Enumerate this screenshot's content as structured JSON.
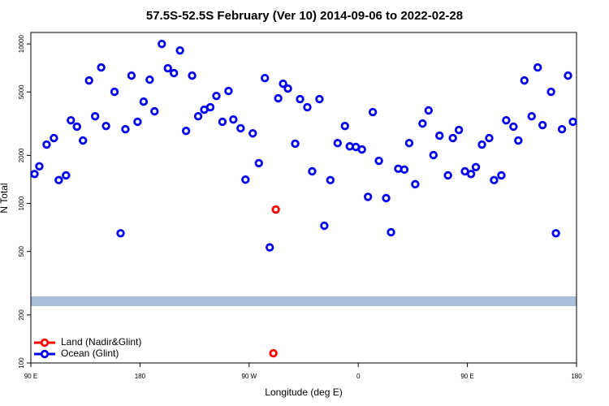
{
  "chart_data": {
    "type": "scatter",
    "title": "57.5S-52.5S February (Ver 10)   2014-09-06 to 2022-02-28",
    "xlabel": "Longitude (deg E)",
    "ylabel": "N Total",
    "ylog": true,
    "xlim": [
      90,
      540
    ],
    "ylim": [
      100,
      11800
    ],
    "xticks": [
      {
        "value": 90,
        "label": "90 E"
      },
      {
        "value": 180,
        "label": "180"
      },
      {
        "value": 270,
        "label": "90 W"
      },
      {
        "value": 360,
        "label": "0"
      },
      {
        "value": 450,
        "label": "90 E"
      },
      {
        "value": 540,
        "label": "180"
      }
    ],
    "yticks": [
      100,
      200,
      500,
      1000,
      2000,
      5000,
      10000
    ],
    "legend": "lower left",
    "series": [
      {
        "name": "Land (Nadir&Glint)",
        "color": "#ff0000",
        "x": [
          292,
          290
        ],
        "values": [
          916,
          115
        ]
      },
      {
        "name": "Ocean (Glint)",
        "color": "#0000ee",
        "x": [
          93,
          97,
          103,
          109,
          113,
          119,
          123,
          128,
          133,
          138,
          143,
          148,
          152,
          159,
          164,
          168,
          173,
          178,
          183,
          188,
          192,
          198,
          203,
          208,
          213,
          218,
          223,
          228,
          233,
          238,
          243,
          248,
          253,
          257,
          263,
          267,
          273,
          278,
          283,
          287,
          294,
          298,
          302,
          308,
          312,
          318,
          322,
          328,
          332,
          337,
          343,
          349,
          353,
          358,
          363,
          368,
          372,
          377,
          383,
          387,
          393,
          398,
          402,
          407,
          413,
          418,
          422,
          427,
          434,
          438,
          443,
          448,
          453,
          457,
          462,
          468,
          472,
          478,
          482,
          488,
          492,
          497,
          503,
          508,
          512,
          519,
          523,
          528,
          533,
          537
        ],
        "values": [
          1530,
          1710,
          2340,
          2570,
          1400,
          1500,
          3320,
          3030,
          2480,
          5900,
          3520,
          7120,
          3060,
          5010,
          650,
          2920,
          6330,
          3250,
          4350,
          5970,
          3780,
          10000,
          7040,
          6560,
          9100,
          2850,
          6330,
          3520,
          3870,
          4010,
          4720,
          3250,
          5070,
          3360,
          2960,
          1410,
          2750,
          1790,
          6110,
          530,
          4560,
          5630,
          5250,
          2370,
          4510,
          4010,
          1590,
          4510,
          725,
          1400,
          2390,
          3060,
          2280,
          2260,
          2180,
          1100,
          3740,
          1850,
          1080,
          660,
          1650,
          1630,
          2390,
          1320,
          3170,
          3830,
          2010,
          2660,
          1500,
          2570,
          2890,
          1590,
          1530,
          1690,
          2340,
          2570,
          1400,
          1500,
          3320,
          3030,
          2480,
          5900,
          3520,
          7120,
          3100,
          5010,
          650,
          2920,
          6330,
          3250
        ]
      }
    ]
  }
}
